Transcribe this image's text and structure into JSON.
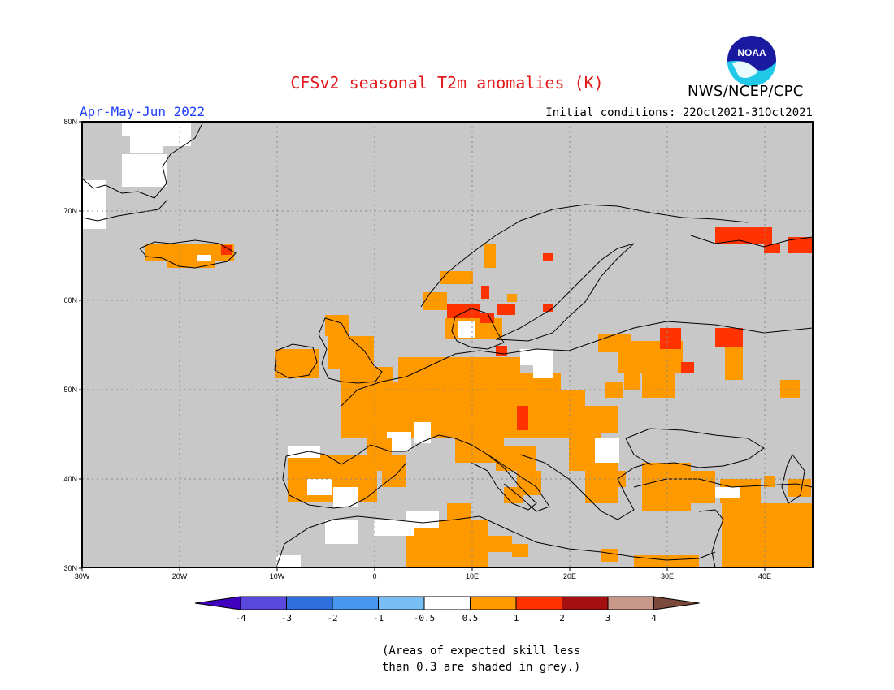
{
  "title": "CFSv2 seasonal T2m anomalies (K)",
  "period": "Apr-May-Jun 2022",
  "initial_conditions": "Initial conditions: 22Oct2021-31Oct2021",
  "agency": "NWS/NCEP/CPC",
  "logo_text": "NOAA",
  "lat_labels": [
    "80N",
    "70N",
    "60N",
    "50N",
    "40N",
    "30N"
  ],
  "lon_labels": [
    "30W",
    "20W",
    "10W",
    "0",
    "10E",
    "20E",
    "30E",
    "40E"
  ],
  "colorbar": {
    "labels": [
      "-4",
      "-3",
      "-2",
      "-1",
      "-0.5",
      "0.5",
      "1",
      "2",
      "3",
      "4"
    ],
    "colors": [
      "#3f00c0",
      "#5a48dc",
      "#2d6fdc",
      "#4896f0",
      "#78bef5",
      "#ffffff",
      "#ff9900",
      "#ff3300",
      "#a50f0f",
      "#c8998a",
      "#7b4a3a"
    ]
  },
  "footnote": [
    "(Areas of expected skill less",
    "than 0.3 are shaded in grey.)"
  ],
  "colors": {
    "grey": "#c8c8c8",
    "orange": "#ff9900",
    "red": "#ff3300",
    "white": "#ffffff"
  }
}
